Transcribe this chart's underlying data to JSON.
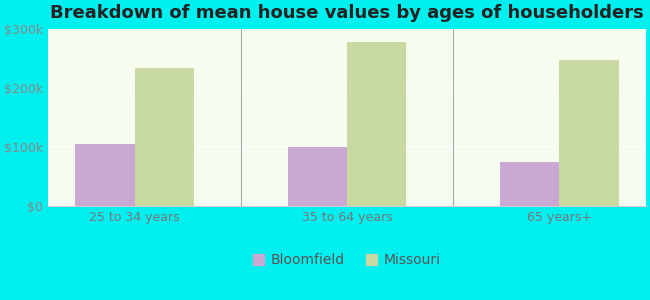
{
  "title": "Breakdown of mean house values by ages of householders",
  "categories": [
    "25 to 34 years",
    "35 to 64 years",
    "65 years+"
  ],
  "bloomfield_values": [
    105000,
    100000,
    75000
  ],
  "missouri_values": [
    235000,
    278000,
    248000
  ],
  "ylim": [
    0,
    300000
  ],
  "yticks": [
    0,
    100000,
    200000,
    300000
  ],
  "ytick_labels": [
    "$0",
    "$100k",
    "$200k",
    "$300k"
  ],
  "bloomfield_color": "#c9a8d4",
  "missouri_color": "#c8d9a2",
  "background_color": "#00efef",
  "legend_labels": [
    "Bloomfield",
    "Missouri"
  ],
  "bar_width": 0.28,
  "title_fontsize": 13,
  "tick_fontsize": 9,
  "legend_fontsize": 10
}
